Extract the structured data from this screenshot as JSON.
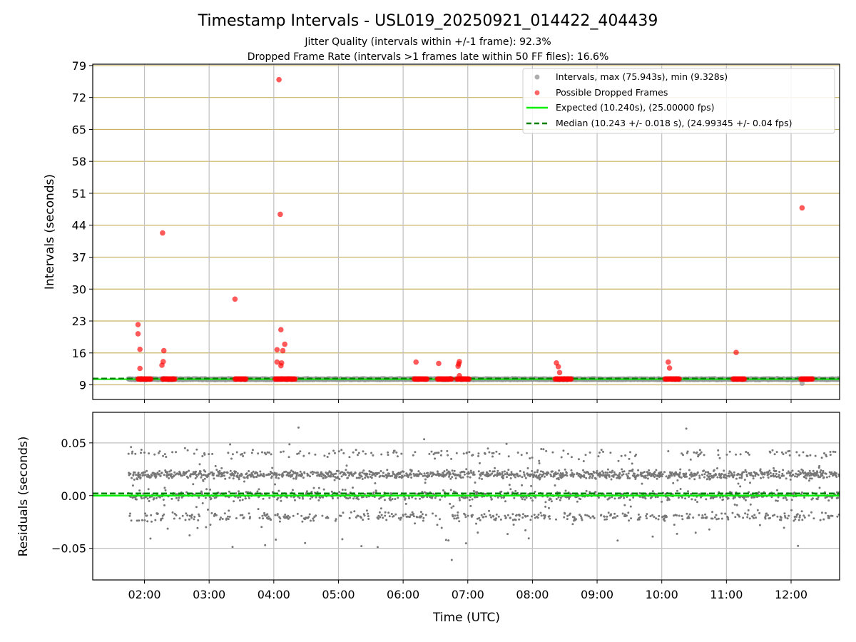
{
  "chart_data": [
    {
      "type": "scatter",
      "title": "Timestamp Intervals - USL019_20250921_014422_404439",
      "subtitle_lines": [
        "Jitter Quality (intervals within +/-1 frame): 92.3%",
        "Dropped Frame Rate (intervals >1 frames late within 50 FF files): 16.6%"
      ],
      "xlabel": "",
      "ylabel": "Intervals (seconds)",
      "x_range_hours": [
        1.2,
        12.75
      ],
      "ylim": [
        5.8,
        79.3
      ],
      "yticks": [
        9,
        16,
        23,
        30,
        37,
        44,
        51,
        58,
        65,
        72,
        79
      ],
      "ytick_labels": [
        "9",
        "16",
        "23",
        "30",
        "37",
        "44",
        "51",
        "58",
        "65",
        "72",
        "79"
      ],
      "grid": true,
      "legend_position": "top-right",
      "legend": [
        "Intervals, max (75.943s), min (9.328s)",
        "Possible Dropped Frames",
        "Expected (10.240s), (25.00000 fps)",
        "Median (10.243 +/- 0.018 s), (24.99345 +/- 0.04 fps)"
      ],
      "colors": {
        "intervals": "#9a9a9a",
        "dropped": "#ff0000",
        "expected": "#00ee00",
        "median": "#008000",
        "horizontal_grid": "#c8b464",
        "vertical_grid": "#c0c0c0"
      },
      "expected": 10.24,
      "median": 10.243,
      "intervals_time_range": [
        1.75,
        12.75
      ],
      "dropped_clusters": [
        {
          "start": 1.9,
          "end": 2.1
        },
        {
          "start": 2.28,
          "end": 2.47
        },
        {
          "start": 3.4,
          "end": 3.57
        },
        {
          "start": 4.02,
          "end": 4.33
        },
        {
          "start": 6.17,
          "end": 6.37
        },
        {
          "start": 6.53,
          "end": 6.75
        },
        {
          "start": 6.83,
          "end": 7.02
        },
        {
          "start": 8.35,
          "end": 8.6
        },
        {
          "start": 10.05,
          "end": 10.27
        },
        {
          "start": 11.1,
          "end": 11.28
        },
        {
          "start": 12.15,
          "end": 12.33
        }
      ],
      "dropped_points": [
        {
          "x": 1.9,
          "y": 22.2
        },
        {
          "x": 1.9,
          "y": 20.2
        },
        {
          "x": 1.93,
          "y": 16.8
        },
        {
          "x": 1.93,
          "y": 12.6
        },
        {
          "x": 2.28,
          "y": 42.3
        },
        {
          "x": 2.3,
          "y": 16.5
        },
        {
          "x": 2.29,
          "y": 14.1
        },
        {
          "x": 2.27,
          "y": 13.3
        },
        {
          "x": 3.4,
          "y": 27.8
        },
        {
          "x": 4.08,
          "y": 75.9
        },
        {
          "x": 4.1,
          "y": 46.4
        },
        {
          "x": 4.11,
          "y": 21.1
        },
        {
          "x": 4.05,
          "y": 16.7
        },
        {
          "x": 4.14,
          "y": 16.5
        },
        {
          "x": 4.17,
          "y": 17.9
        },
        {
          "x": 4.05,
          "y": 14.0
        },
        {
          "x": 4.12,
          "y": 13.8
        },
        {
          "x": 4.11,
          "y": 13.2
        },
        {
          "x": 6.2,
          "y": 14.0
        },
        {
          "x": 6.55,
          "y": 13.7
        },
        {
          "x": 6.87,
          "y": 14.1
        },
        {
          "x": 6.86,
          "y": 13.6
        },
        {
          "x": 6.85,
          "y": 13.1
        },
        {
          "x": 6.87,
          "y": 11.0
        },
        {
          "x": 8.37,
          "y": 13.8
        },
        {
          "x": 8.4,
          "y": 13.0
        },
        {
          "x": 8.42,
          "y": 11.7
        },
        {
          "x": 10.1,
          "y": 14.0
        },
        {
          "x": 10.12,
          "y": 12.7
        },
        {
          "x": 11.15,
          "y": 16.1
        },
        {
          "x": 12.17,
          "y": 47.8
        }
      ]
    },
    {
      "type": "scatter",
      "xlabel": "Time (UTC)",
      "ylabel": "Residuals (seconds)",
      "ylim": [
        -0.08,
        0.079
      ],
      "yticks": [
        -0.05,
        0.0,
        0.05
      ],
      "ytick_labels": [
        "−0.05",
        "0.00",
        "0.05"
      ],
      "x_range_hours": [
        1.2,
        12.75
      ],
      "xticks": [
        2,
        3,
        4,
        5,
        6,
        7,
        8,
        9,
        10,
        11,
        12
      ],
      "xtick_labels": [
        "02:00",
        "03:00",
        "04:00",
        "05:00",
        "06:00",
        "07:00",
        "08:00",
        "09:00",
        "10:00",
        "11:00",
        "12:00"
      ],
      "grid": true,
      "expected_residual": 0.0,
      "median_residual": 0.002,
      "residual_levels": [
        -0.02,
        0.0,
        0.02,
        0.04
      ],
      "colors": {
        "points": "#777777",
        "expected": "#00ee00",
        "median": "#008000",
        "grid": "#c0c0c0"
      }
    }
  ]
}
